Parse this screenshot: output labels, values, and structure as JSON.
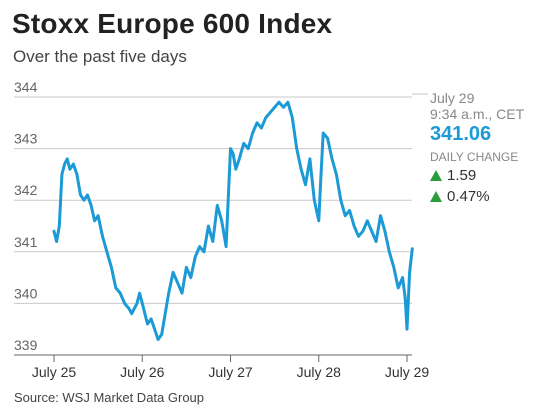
{
  "chart_data": {
    "type": "line",
    "title": "Stoxx Europe 600 Index",
    "subtitle": "Over the past five days",
    "source": "Source: WSJ Market Data Group",
    "ylim": [
      339,
      344
    ],
    "y_ticks": [
      "344",
      "343",
      "342",
      "341",
      "340",
      "339"
    ],
    "x_ticks": [
      "July 25",
      "July 26",
      "July 27",
      "July 28",
      "July 29"
    ],
    "grid": true,
    "colors": {
      "line": "#1c9ad6",
      "up": "#2a9d3a",
      "accent": "#1c9ad6"
    },
    "series": [
      {
        "x": [
          0,
          0.03,
          0.06,
          0.09,
          0.12,
          0.15,
          0.18,
          0.22,
          0.26,
          0.3,
          0.34,
          0.38,
          0.42,
          0.46,
          0.5,
          0.55,
          0.6,
          0.65,
          0.7,
          0.75,
          0.8,
          0.85,
          0.88,
          0.91,
          0.94,
          0.97,
          1.0,
          1.03,
          1.06,
          1.1,
          1.14,
          1.18,
          1.22,
          1.26,
          1.3,
          1.35,
          1.4,
          1.45,
          1.5,
          1.55,
          1.6,
          1.65,
          1.7,
          1.75,
          1.8,
          1.85,
          1.9,
          1.95,
          2.0,
          2.03,
          2.06,
          2.1,
          2.15,
          2.2,
          2.25,
          2.3,
          2.35,
          2.4,
          2.45,
          2.5,
          2.55,
          2.6,
          2.65,
          2.7,
          2.75,
          2.8,
          2.85,
          2.9,
          2.95,
          3.0,
          3.02,
          3.05,
          3.1,
          3.15,
          3.2,
          3.25,
          3.3,
          3.35,
          3.4,
          3.45,
          3.5,
          3.55,
          3.6,
          3.65,
          3.7,
          3.75,
          3.8,
          3.85,
          3.9,
          3.95,
          3.98,
          4.0,
          4.03,
          4.06
        ],
        "values": [
          341.4,
          341.2,
          341.5,
          342.5,
          342.7,
          342.8,
          342.6,
          342.7,
          342.5,
          342.1,
          342.0,
          342.1,
          341.9,
          341.6,
          341.7,
          341.3,
          341.0,
          340.7,
          340.3,
          340.2,
          340.0,
          339.9,
          339.8,
          339.9,
          340.0,
          340.2,
          340.0,
          339.8,
          339.6,
          339.7,
          339.5,
          339.3,
          339.4,
          339.8,
          340.2,
          340.6,
          340.4,
          340.2,
          340.7,
          340.5,
          340.9,
          341.1,
          341.0,
          341.5,
          341.2,
          341.9,
          341.6,
          341.1,
          343.0,
          342.9,
          342.6,
          342.8,
          343.1,
          343.0,
          343.3,
          343.5,
          343.4,
          343.6,
          343.7,
          343.8,
          343.9,
          343.8,
          343.9,
          343.6,
          343.0,
          342.6,
          342.3,
          342.8,
          342.0,
          341.6,
          342.3,
          343.3,
          343.2,
          342.8,
          342.5,
          342.0,
          341.7,
          341.8,
          341.5,
          341.3,
          341.4,
          341.6,
          341.4,
          341.2,
          341.7,
          341.4,
          341.0,
          340.7,
          340.3,
          340.5,
          340.1,
          339.5,
          340.6,
          341.06
        ]
      }
    ]
  },
  "info": {
    "date": "July 29",
    "time": "9:34 a.m., CET",
    "price": "341.06",
    "daily_change_label": "DAILY CHANGE",
    "change_points": "1.59",
    "change_percent": "0.47%"
  }
}
